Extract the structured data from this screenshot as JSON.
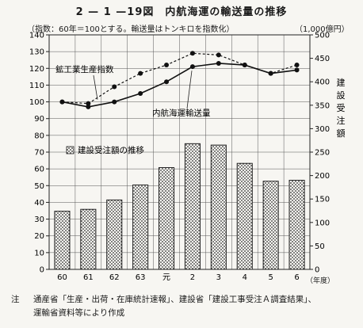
{
  "title": "2 — 1 —19図　内航海運の輸送量の推移",
  "subtitle": "（指数：60年＝100とする。輸送量はトンキロを指数化）",
  "right_unit": "（1,000億円）",
  "x_unit": "（年度）",
  "note_mark": "注",
  "note_line1": "通産省「生産・出荷・在庫統計速報」、建設省「建設工事受注Ａ調査結果」、",
  "note_line2": "運輸省資料等により作成",
  "chart_data": {
    "type": "bar+line",
    "categories": [
      "60",
      "61",
      "62",
      "63",
      "元",
      "2",
      "3",
      "4",
      "5",
      "6"
    ],
    "left_axis": {
      "range": [
        0,
        140
      ],
      "ticks": [
        0,
        10,
        20,
        30,
        40,
        50,
        60,
        70,
        80,
        90,
        100,
        110,
        120,
        130,
        140
      ]
    },
    "right_axis": {
      "label": "建設受注額",
      "range": [
        0,
        500
      ],
      "ticks": [
        0,
        50,
        100,
        150,
        200,
        250,
        300,
        350,
        400,
        450,
        500
      ]
    },
    "grid": true,
    "series": [
      {
        "name": "建設受注額の推移",
        "type": "bar",
        "axis": "right",
        "values": [
          124,
          128,
          148,
          180,
          217,
          268,
          265,
          226,
          188,
          190
        ],
        "pattern": "dotted"
      },
      {
        "name": "鉱工業生産指数",
        "type": "line",
        "axis": "left",
        "style": "dashed",
        "values": [
          100,
          99,
          109,
          117,
          122,
          129,
          128,
          122,
          117,
          122
        ]
      },
      {
        "name": "内航海運輸送量",
        "type": "line",
        "axis": "left",
        "style": "solid",
        "values": [
          100,
          97,
          100,
          105,
          112,
          121,
          123,
          122,
          117,
          119
        ]
      }
    ]
  }
}
